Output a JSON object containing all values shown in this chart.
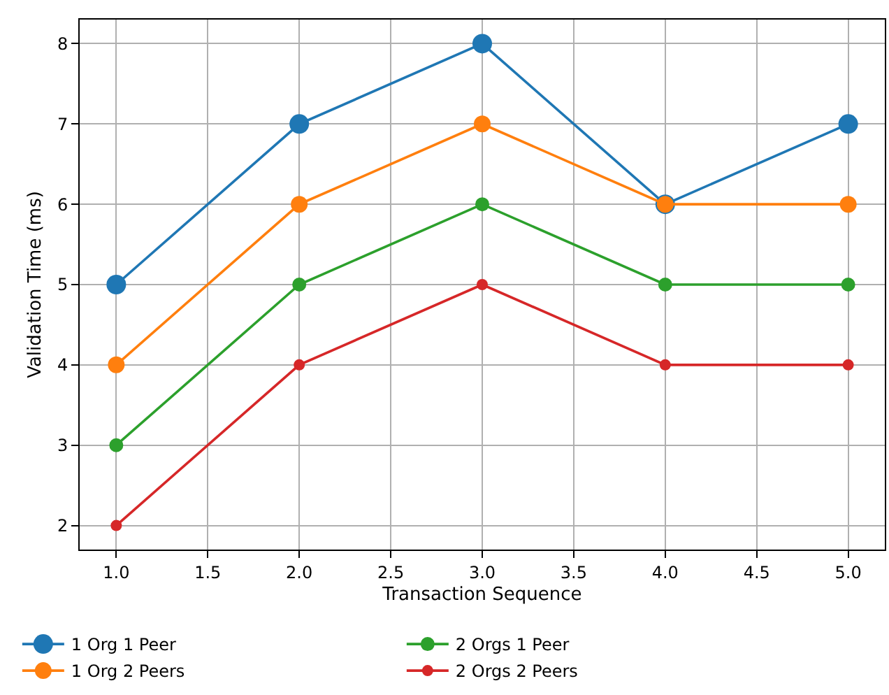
{
  "chart_data": {
    "type": "line",
    "xlabel": "Transaction Sequence",
    "ylabel": "Validation Time (ms)",
    "x": [
      1,
      2,
      3,
      4,
      5
    ],
    "series": [
      {
        "name": "1 Org 1 Peer",
        "color": "#1f77b4",
        "values": [
          5,
          7,
          8,
          6,
          7
        ]
      },
      {
        "name": "1 Org 2 Peers",
        "color": "#ff7f0e",
        "values": [
          4,
          6,
          7,
          6,
          6
        ]
      },
      {
        "name": "2 Orgs 1 Peer",
        "color": "#2ca02c",
        "values": [
          3,
          5,
          6,
          5,
          5
        ]
      },
      {
        "name": "2 Orgs 2 Peers",
        "color": "#d62728",
        "values": [
          2,
          4,
          5,
          4,
          4
        ]
      }
    ],
    "xlim": [
      0.8,
      5.2
    ],
    "ylim": [
      1.7,
      8.3
    ],
    "xticks": [
      {
        "value": 1,
        "label": "1.0"
      },
      {
        "value": 1.5,
        "label": "1.5"
      },
      {
        "value": 2,
        "label": "2.0"
      },
      {
        "value": 2.5,
        "label": "2.5"
      },
      {
        "value": 3,
        "label": "3.0"
      },
      {
        "value": 3.5,
        "label": "3.5"
      },
      {
        "value": 4,
        "label": "4.0"
      },
      {
        "value": 4.5,
        "label": "4.5"
      },
      {
        "value": 5,
        "label": "5.0"
      }
    ],
    "yticks": [
      2,
      3,
      4,
      5,
      6,
      7,
      8
    ],
    "grid": true,
    "legend": "bottom left",
    "marker": "circle",
    "line_style": "solid"
  }
}
